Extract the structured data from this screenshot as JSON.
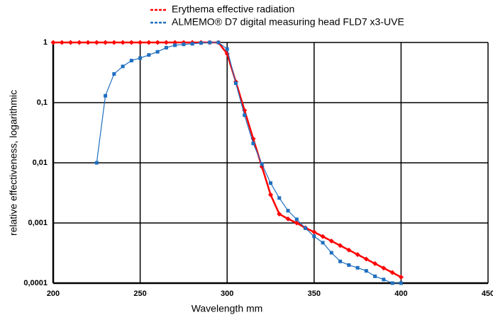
{
  "chart_data": {
    "type": "line",
    "x_label": "Wavelength   mm",
    "y_label": "relative effectiveness, logarithmic",
    "xlim": [
      200,
      450
    ],
    "xticks": [
      200,
      250,
      300,
      350,
      400,
      450
    ],
    "ylim": [
      0.0001,
      1
    ],
    "yticks": [
      {
        "value": 0.0001,
        "label": "0,0001"
      },
      {
        "value": 0.001,
        "label": "0,001"
      },
      {
        "value": 0.01,
        "label": "0,01"
      },
      {
        "value": 0.1,
        "label": "0,1"
      },
      1
    ],
    "log_y": true,
    "grid": true,
    "legend": "top",
    "series": [
      {
        "name": "Erythema effective radiation",
        "color": "#ff0000",
        "marker": "diamond",
        "x": [
          200,
          205,
          210,
          215,
          220,
          225,
          230,
          235,
          240,
          245,
          250,
          255,
          260,
          265,
          270,
          275,
          280,
          285,
          290,
          295,
          300,
          305,
          310,
          315,
          320,
          325,
          330,
          335,
          340,
          345,
          350,
          355,
          360,
          365,
          370,
          375,
          380,
          385,
          390,
          395,
          400
        ],
        "values": [
          1,
          1,
          1,
          1,
          1,
          1,
          1,
          1,
          1,
          1,
          1,
          1,
          1,
          1,
          1,
          1,
          1,
          1,
          1,
          1,
          0.649,
          0.222,
          0.0746,
          0.0251,
          0.00862,
          0.00295,
          0.00141,
          0.00117,
          0.001,
          0.00083,
          0.000708,
          0.000596,
          0.000501,
          0.000422,
          0.000355,
          0.000299,
          0.000251,
          0.000211,
          0.000178,
          0.00015,
          0.000126
        ]
      },
      {
        "name": "ALMEMO® D7 digital measuring head FLD7 x3-UVE",
        "color": "#1f6fc0",
        "marker": "square",
        "x": [
          225,
          230,
          235,
          240,
          245,
          250,
          255,
          260,
          265,
          270,
          275,
          280,
          285,
          290,
          295,
          300,
          305,
          310,
          315,
          320,
          325,
          330,
          335,
          340,
          345,
          350,
          355,
          360,
          365,
          370,
          375,
          380,
          385,
          390,
          395,
          400
        ],
        "values": [
          0.01,
          0.13,
          0.3,
          0.4,
          0.5,
          0.55,
          0.62,
          0.7,
          0.82,
          0.9,
          0.93,
          0.95,
          0.98,
          1,
          1,
          0.78,
          0.21,
          0.062,
          0.021,
          0.0095,
          0.0046,
          0.0026,
          0.0016,
          0.00115,
          0.00082,
          0.0006,
          0.00047,
          0.00032,
          0.00023,
          0.0002,
          0.00018,
          0.00016,
          0.00013,
          0.000115,
          0.0001,
          0.0001
        ]
      }
    ]
  }
}
